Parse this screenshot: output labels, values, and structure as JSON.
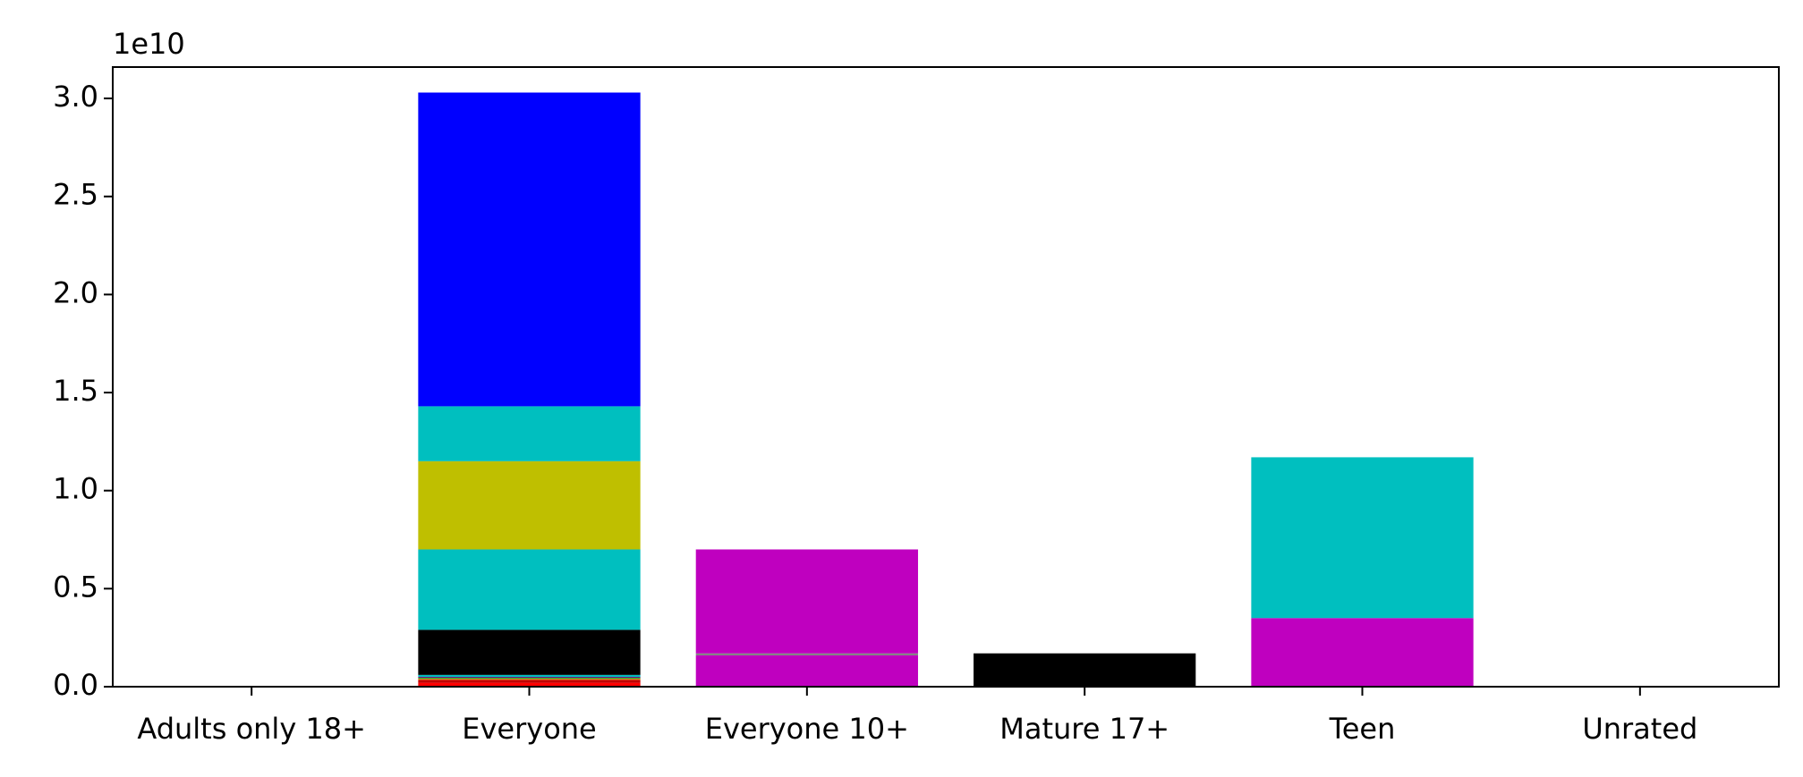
{
  "chart_data": {
    "type": "bar",
    "stacked": true,
    "title": "",
    "xlabel": "",
    "ylabel": "",
    "y_offset_label": "1e10",
    "y_scale": 10000000000,
    "ylim": [
      0,
      3.16
    ],
    "y_ticks": [
      0.0,
      0.5,
      1.0,
      1.5,
      2.0,
      2.5,
      3.0
    ],
    "y_tick_labels": [
      "0.0",
      "0.5",
      "1.0",
      "1.5",
      "2.0",
      "2.5",
      "3.0"
    ],
    "grid": false,
    "legend": "none",
    "categories": [
      "Adults only 18+",
      "Everyone",
      "Everyone 10+",
      "Mature 17+",
      "Teen",
      "Unrated"
    ],
    "stacks": [
      [],
      [
        {
          "value": 0.02,
          "color": "#ff0000"
        },
        {
          "value": 0.015,
          "color": "#bf0000"
        },
        {
          "value": 0.005,
          "color": "#ff6600"
        },
        {
          "value": 0.005,
          "color": "#00bf00"
        },
        {
          "value": 0.005,
          "color": "#800080"
        },
        {
          "value": 0.01,
          "color": "#00bfbf"
        },
        {
          "value": 0.23,
          "color": "#000000"
        },
        {
          "value": 0.41,
          "color": "#00bfbf"
        },
        {
          "value": 0.45,
          "color": "#bfbf00"
        },
        {
          "value": 0.28,
          "color": "#00bfbf"
        },
        {
          "value": 1.6,
          "color": "#0000ff"
        }
      ],
      [
        {
          "value": 0.16,
          "color": "#bf00bf"
        },
        {
          "value": 0.01,
          "color": "#808080"
        },
        {
          "value": 0.53,
          "color": "#bf00bf"
        }
      ],
      [
        {
          "value": 0.17,
          "color": "#000000"
        }
      ],
      [
        {
          "value": 0.35,
          "color": "#bf00bf"
        },
        {
          "value": 0.82,
          "color": "#00bfbf"
        }
      ],
      []
    ]
  }
}
